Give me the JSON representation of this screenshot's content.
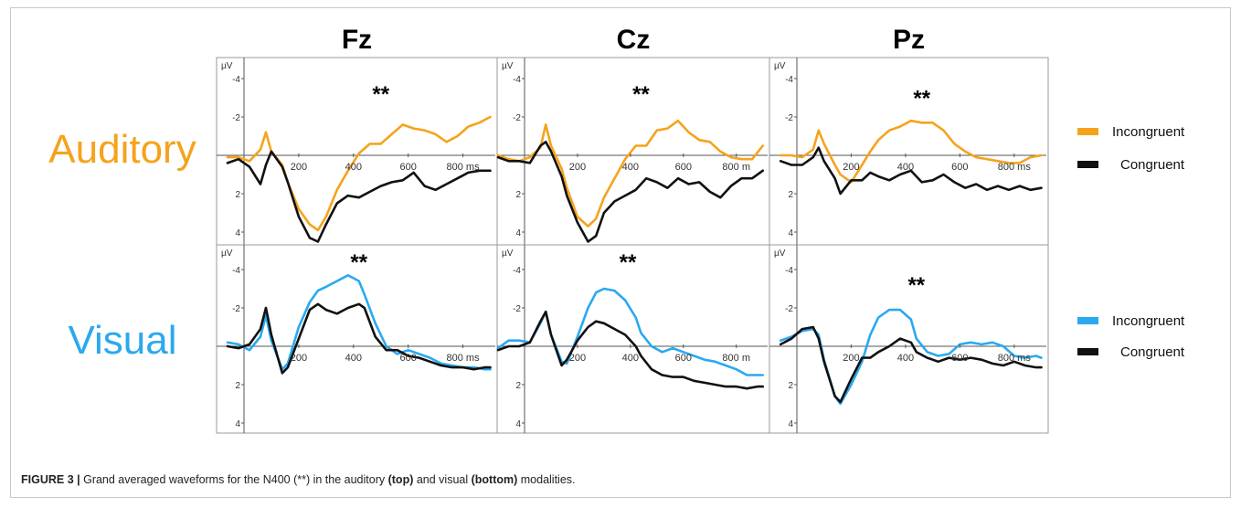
{
  "figure": {
    "caption": {
      "label": "FIGURE 3 |",
      "t1": " Grand averaged waveforms for the N400 (**) in the auditory ",
      "b1": "(top)",
      "t2": " and visual ",
      "b2": "(bottom)",
      "t3": " modalities."
    }
  },
  "chart_data": {
    "type": "line",
    "columns": [
      "Fz",
      "Cz",
      "Pz"
    ],
    "rows": [
      "Auditory",
      "Visual"
    ],
    "y_unit_label": "µV",
    "x_unit_label": "ms",
    "y_ticks": [
      -4,
      -2,
      2,
      4
    ],
    "x_ticks": [
      200,
      400,
      600,
      800
    ],
    "xlim": [
      -100,
      900
    ],
    "ylim": [
      -5,
      5
    ],
    "y_axis_inverted": true,
    "significance_marker": "**",
    "colors": {
      "auditory": "#f5a31c",
      "visual": "#2aa9f0",
      "congruent": "#111111"
    },
    "legends": [
      {
        "row": "Auditory",
        "items": [
          {
            "label": "Incongruent",
            "color": "#f5a31c"
          },
          {
            "label": "Congruent",
            "color": "#111111"
          }
        ]
      },
      {
        "row": "Visual",
        "items": [
          {
            "label": "Incongruent",
            "color": "#2aa9f0"
          },
          {
            "label": "Congruent",
            "color": "#111111"
          }
        ]
      }
    ],
    "panels": [
      {
        "row": "Auditory",
        "column": "Fz",
        "ytick_labels": [
          "-4",
          "-2",
          "2",
          "4"
        ],
        "xtick_labels": [
          "200",
          "400",
          "600",
          "800 ms"
        ],
        "marker_x": 500,
        "marker_y": -2.8,
        "series": [
          {
            "condition": "Incongruent",
            "color": "#f5a31c",
            "x": [
              -100,
              -60,
              -20,
              20,
              60,
              80,
              100,
              140,
              160,
              200,
              240,
              270,
              300,
              340,
              380,
              420,
              460,
              500,
              540,
              580,
              620,
              660,
              700,
              740,
              780,
              820,
              860,
              900
            ],
            "y": [
              0,
              0.1,
              0.1,
              0.3,
              -0.3,
              -1.2,
              -0.2,
              0.5,
              1.4,
              2.8,
              3.6,
              3.9,
              3.2,
              1.8,
              0.8,
              -0.1,
              -0.6,
              -0.6,
              -1.1,
              -1.6,
              -1.4,
              -1.3,
              -1.1,
              -0.7,
              -1.0,
              -1.5,
              -1.7,
              -2.0
            ]
          },
          {
            "condition": "Congruent",
            "color": "#111111",
            "x": [
              -100,
              -60,
              -20,
              20,
              60,
              80,
              100,
              140,
              160,
              200,
              240,
              270,
              300,
              340,
              380,
              420,
              460,
              500,
              540,
              580,
              620,
              660,
              700,
              740,
              780,
              820,
              860,
              900
            ],
            "y": [
              0.2,
              0.4,
              0.2,
              0.6,
              1.5,
              0.5,
              -0.2,
              0.6,
              1.4,
              3.2,
              4.3,
              4.5,
              3.6,
              2.5,
              2.1,
              2.2,
              1.9,
              1.6,
              1.4,
              1.3,
              0.9,
              1.6,
              1.8,
              1.5,
              1.2,
              0.9,
              0.8,
              0.8
            ]
          }
        ]
      },
      {
        "row": "Auditory",
        "column": "Cz",
        "ytick_labels": [
          "-4",
          "-2",
          "2",
          "4"
        ],
        "xtick_labels": [
          "200",
          "400",
          "600",
          "800 m"
        ],
        "marker_x": 440,
        "marker_y": -2.8,
        "series": [
          {
            "condition": "Incongruent",
            "color": "#f5a31c",
            "x": [
              -100,
              -60,
              -20,
              20,
              60,
              80,
              100,
              140,
              160,
              200,
              240,
              270,
              300,
              340,
              380,
              420,
              460,
              500,
              540,
              580,
              620,
              660,
              700,
              740,
              780,
              820,
              860,
              900
            ],
            "y": [
              0,
              0.2,
              0.3,
              0.1,
              -0.4,
              -1.6,
              -0.5,
              0.7,
              1.7,
              3.2,
              3.7,
              3.3,
              2.2,
              1.2,
              0.2,
              -0.5,
              -0.5,
              -1.3,
              -1.4,
              -1.8,
              -1.2,
              -0.8,
              -0.7,
              -0.2,
              0.1,
              0.2,
              0.2,
              -0.5
            ]
          },
          {
            "condition": "Congruent",
            "color": "#111111",
            "x": [
              -100,
              -60,
              -20,
              20,
              60,
              80,
              100,
              140,
              160,
              200,
              240,
              270,
              300,
              340,
              380,
              420,
              460,
              500,
              540,
              580,
              620,
              660,
              700,
              740,
              780,
              820,
              860,
              900
            ],
            "y": [
              0.1,
              0.3,
              0.3,
              0.4,
              -0.5,
              -0.7,
              -0.2,
              1.1,
              2.1,
              3.5,
              4.5,
              4.2,
              3.0,
              2.4,
              2.1,
              1.8,
              1.2,
              1.4,
              1.7,
              1.2,
              1.5,
              1.4,
              1.9,
              2.2,
              1.6,
              1.2,
              1.2,
              0.8
            ]
          }
        ]
      },
      {
        "row": "Auditory",
        "column": "Pz",
        "ytick_labels": [
          "-4",
          "-2",
          "2",
          "4"
        ],
        "xtick_labels": [
          "200",
          "400",
          "600",
          "800 ms"
        ],
        "marker_x": 460,
        "marker_y": -2.6,
        "series": [
          {
            "condition": "Incongruent",
            "color": "#f5a31c",
            "x": [
              -100,
              -60,
              -20,
              20,
              60,
              80,
              100,
              140,
              160,
              200,
              240,
              270,
              300,
              340,
              380,
              420,
              460,
              500,
              540,
              580,
              620,
              660,
              700,
              740,
              780,
              820,
              860,
              900
            ],
            "y": [
              0,
              0,
              0,
              0.1,
              -0.3,
              -1.3,
              -0.6,
              0.5,
              1.0,
              1.4,
              0.5,
              -0.2,
              -0.8,
              -1.3,
              -1.5,
              -1.8,
              -1.7,
              -1.7,
              -1.3,
              -0.6,
              -0.2,
              0.1,
              0.2,
              0.3,
              0.4,
              0.4,
              0.1,
              0
            ]
          },
          {
            "condition": "Congruent",
            "color": "#111111",
            "x": [
              -100,
              -60,
              -20,
              20,
              60,
              80,
              100,
              140,
              160,
              200,
              240,
              270,
              300,
              340,
              380,
              420,
              460,
              500,
              540,
              580,
              620,
              660,
              700,
              740,
              780,
              820,
              860,
              900
            ],
            "y": [
              0.2,
              0.3,
              0.5,
              0.5,
              0.1,
              -0.4,
              0.3,
              1.2,
              2.0,
              1.3,
              1.3,
              0.9,
              1.1,
              1.3,
              1.0,
              0.8,
              1.4,
              1.3,
              1.0,
              1.4,
              1.7,
              1.5,
              1.8,
              1.6,
              1.8,
              1.6,
              1.8,
              1.7
            ]
          }
        ]
      },
      {
        "row": "Visual",
        "column": "Fz",
        "ytick_labels": [
          "-4",
          "-2",
          "2",
          "4"
        ],
        "xtick_labels": [
          "200",
          "400",
          "600",
          "800 ms"
        ],
        "marker_x": 420,
        "marker_y": -4.0,
        "series": [
          {
            "condition": "Incongruent",
            "color": "#2aa9f0",
            "x": [
              -100,
              -60,
              -20,
              20,
              60,
              80,
              100,
              140,
              160,
              200,
              240,
              270,
              300,
              340,
              380,
              420,
              440,
              480,
              520,
              560,
              600,
              640,
              680,
              720,
              760,
              800,
              840,
              880,
              900
            ],
            "y": [
              0.3,
              -0.2,
              -0.1,
              0.2,
              -0.5,
              -1.6,
              -0.3,
              1.2,
              0.9,
              -1.0,
              -2.3,
              -2.9,
              -3.1,
              -3.4,
              -3.7,
              -3.4,
              -2.7,
              -1.2,
              0,
              0.4,
              0.2,
              0.4,
              0.6,
              0.9,
              1.0,
              1.1,
              1.1,
              1.2,
              1.2
            ]
          },
          {
            "condition": "Congruent",
            "color": "#111111",
            "x": [
              -100,
              -60,
              -20,
              20,
              60,
              80,
              100,
              140,
              160,
              200,
              240,
              270,
              300,
              340,
              380,
              420,
              440,
              480,
              520,
              560,
              600,
              640,
              680,
              720,
              760,
              800,
              840,
              880,
              900
            ],
            "y": [
              0,
              0,
              0.1,
              -0.1,
              -0.9,
              -2.0,
              -0.6,
              1.4,
              1.1,
              -0.4,
              -1.9,
              -2.2,
              -1.9,
              -1.7,
              -2.0,
              -2.2,
              -2.0,
              -0.5,
              0.2,
              0.2,
              0.5,
              0.6,
              0.8,
              1.0,
              1.1,
              1.1,
              1.2,
              1.1,
              1.1
            ]
          }
        ]
      },
      {
        "row": "Visual",
        "column": "Cz",
        "ytick_labels": [
          "-4",
          "-2",
          "2",
          "4"
        ],
        "xtick_labels": [
          "200",
          "400",
          "600",
          "800 m"
        ],
        "marker_x": 390,
        "marker_y": -4.0,
        "series": [
          {
            "condition": "Incongruent",
            "color": "#2aa9f0",
            "x": [
              -100,
              -60,
              -20,
              20,
              60,
              80,
              100,
              140,
              160,
              200,
              240,
              270,
              300,
              340,
              380,
              420,
              440,
              480,
              520,
              560,
              600,
              640,
              680,
              720,
              760,
              800,
              840,
              880,
              900
            ],
            "y": [
              0.1,
              -0.3,
              -0.3,
              -0.2,
              -1.2,
              -1.8,
              -0.6,
              0.8,
              0.9,
              -0.5,
              -2.0,
              -2.8,
              -3.0,
              -2.9,
              -2.4,
              -1.5,
              -0.7,
              0,
              0.3,
              0.1,
              0.3,
              0.5,
              0.7,
              0.8,
              1.0,
              1.2,
              1.5,
              1.5,
              1.5
            ]
          },
          {
            "condition": "Congruent",
            "color": "#111111",
            "x": [
              -100,
              -60,
              -20,
              20,
              60,
              80,
              100,
              140,
              160,
              200,
              240,
              270,
              300,
              340,
              380,
              420,
              440,
              480,
              520,
              560,
              600,
              640,
              680,
              720,
              760,
              800,
              840,
              880,
              900
            ],
            "y": [
              0.2,
              0,
              0,
              -0.2,
              -1.3,
              -1.8,
              -0.6,
              1.0,
              0.7,
              -0.3,
              -1.0,
              -1.3,
              -1.2,
              -0.9,
              -0.6,
              0.0,
              0.5,
              1.2,
              1.5,
              1.6,
              1.6,
              1.8,
              1.9,
              2.0,
              2.1,
              2.1,
              2.2,
              2.1,
              2.1
            ]
          }
        ]
      },
      {
        "row": "Visual",
        "column": "Pz",
        "ytick_labels": [
          "-4",
          "-2",
          "2",
          "4"
        ],
        "xtick_labels": [
          "200",
          "400",
          "600",
          "800 ms"
        ],
        "marker_x": 440,
        "marker_y": -2.8,
        "series": [
          {
            "condition": "Incongruent",
            "color": "#2aa9f0",
            "x": [
              -100,
              -60,
              -20,
              20,
              60,
              80,
              100,
              140,
              160,
              200,
              240,
              270,
              300,
              340,
              380,
              420,
              440,
              480,
              520,
              560,
              600,
              640,
              680,
              720,
              760,
              800,
              840,
              880,
              900
            ],
            "y": [
              0,
              -0.3,
              -0.5,
              -0.8,
              -0.9,
              -0.6,
              0.7,
              2.6,
              3.0,
              2.0,
              0.8,
              -0.6,
              -1.5,
              -1.9,
              -1.9,
              -1.4,
              -0.4,
              0.3,
              0.5,
              0.4,
              -0.1,
              -0.2,
              -0.1,
              -0.2,
              0.0,
              0.5,
              0.6,
              0.5,
              0.6
            ]
          },
          {
            "condition": "Congruent",
            "color": "#111111",
            "x": [
              -100,
              -60,
              -20,
              20,
              60,
              80,
              100,
              140,
              160,
              200,
              240,
              270,
              300,
              340,
              380,
              420,
              440,
              480,
              520,
              560,
              600,
              640,
              680,
              720,
              760,
              800,
              840,
              880,
              900
            ],
            "y": [
              0.2,
              -0.1,
              -0.4,
              -0.9,
              -1.0,
              -0.4,
              0.8,
              2.6,
              2.9,
              1.7,
              0.6,
              0.6,
              0.3,
              0.0,
              -0.4,
              -0.2,
              0.3,
              0.6,
              0.8,
              0.6,
              0.7,
              0.6,
              0.7,
              0.9,
              1.0,
              0.8,
              1.0,
              1.1,
              1.1
            ]
          }
        ]
      }
    ]
  }
}
